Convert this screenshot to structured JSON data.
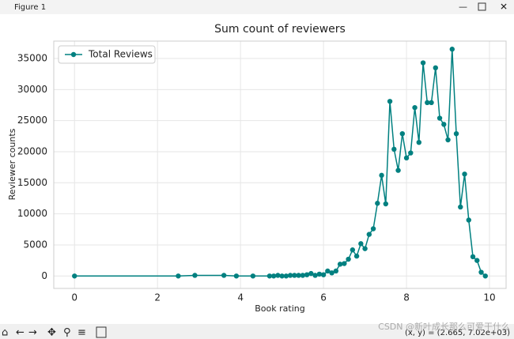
{
  "window": {
    "title": "Figure 1",
    "status": "(x, y) = (2.665, 7.02e+03)",
    "watermark": "CSDN @新叶成长那么可爱干什么"
  },
  "chart_data": {
    "type": "line",
    "title": "Sum count of reviewers",
    "x_label": "Book rating",
    "y_label": "Reviewer counts",
    "x": [
      0,
      2.5,
      2.9,
      3.6,
      3.9,
      4.3,
      4.7,
      4.8,
      4.9,
      5.0,
      5.1,
      5.2,
      5.3,
      5.4,
      5.5,
      5.6,
      5.7,
      5.8,
      5.9,
      6.0,
      6.1,
      6.2,
      6.3,
      6.4,
      6.5,
      6.6,
      6.7,
      6.8,
      6.9,
      7.0,
      7.1,
      7.2,
      7.3,
      7.4,
      7.5,
      7.6,
      7.7,
      7.8,
      7.9,
      8.0,
      8.1,
      8.2,
      8.3,
      8.4,
      8.5,
      8.6,
      8.7,
      8.8,
      8.9,
      9.0,
      9.1,
      9.2,
      9.3,
      9.4,
      9.5,
      9.6,
      9.7,
      9.8,
      9.9
    ],
    "series": [
      {
        "name": "Total Reviews",
        "color": "#008080",
        "values": [
          0,
          0,
          100,
          100,
          0,
          0,
          0,
          0,
          100,
          0,
          0,
          100,
          100,
          100,
          100,
          200,
          400,
          100,
          300,
          200,
          800,
          500,
          800,
          1900,
          2000,
          2700,
          4200,
          3200,
          5200,
          4400,
          6700,
          7600,
          11700,
          16200,
          11600,
          28100,
          20400,
          17000,
          22900,
          19000,
          19800,
          27100,
          21500,
          34300,
          27900,
          27900,
          33500,
          25400,
          24400,
          21900,
          36500,
          22900,
          11100,
          16400,
          9000,
          3100,
          2500,
          600,
          0
        ]
      }
    ],
    "xlim": [
      -0.5,
      10.4
    ],
    "ylim": [
      -2000,
      37800
    ],
    "xticks": [
      0,
      2,
      4,
      6,
      8,
      10
    ],
    "yticks": [
      0,
      5000,
      10000,
      15000,
      20000,
      25000,
      30000,
      35000
    ],
    "grid": true,
    "legend": "upper left"
  }
}
